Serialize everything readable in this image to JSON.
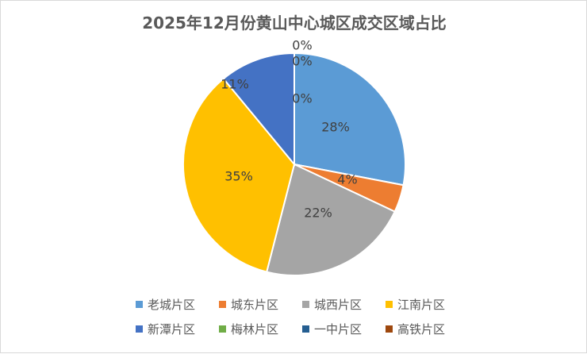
{
  "chart_data": {
    "type": "pie",
    "title": "2025年12月份黄山中心城区成交区域占比",
    "categories": [
      "老城片区",
      "城东片区",
      "城西片区",
      "江南片区",
      "新潭片区",
      "梅林片区",
      "一中片区",
      "高铁片区"
    ],
    "values": [
      28,
      4,
      22,
      35,
      11,
      0,
      0,
      0
    ],
    "labels": [
      "28%",
      "4%",
      "22%",
      "35%",
      "11%",
      "0%",
      "0%",
      "0%"
    ],
    "colors": [
      "#5B9BD5",
      "#ED7D31",
      "#A5A5A5",
      "#FFC000",
      "#4472C4",
      "#70AD47",
      "#255E91",
      "#9E480E"
    ],
    "legend_position": "bottom"
  }
}
